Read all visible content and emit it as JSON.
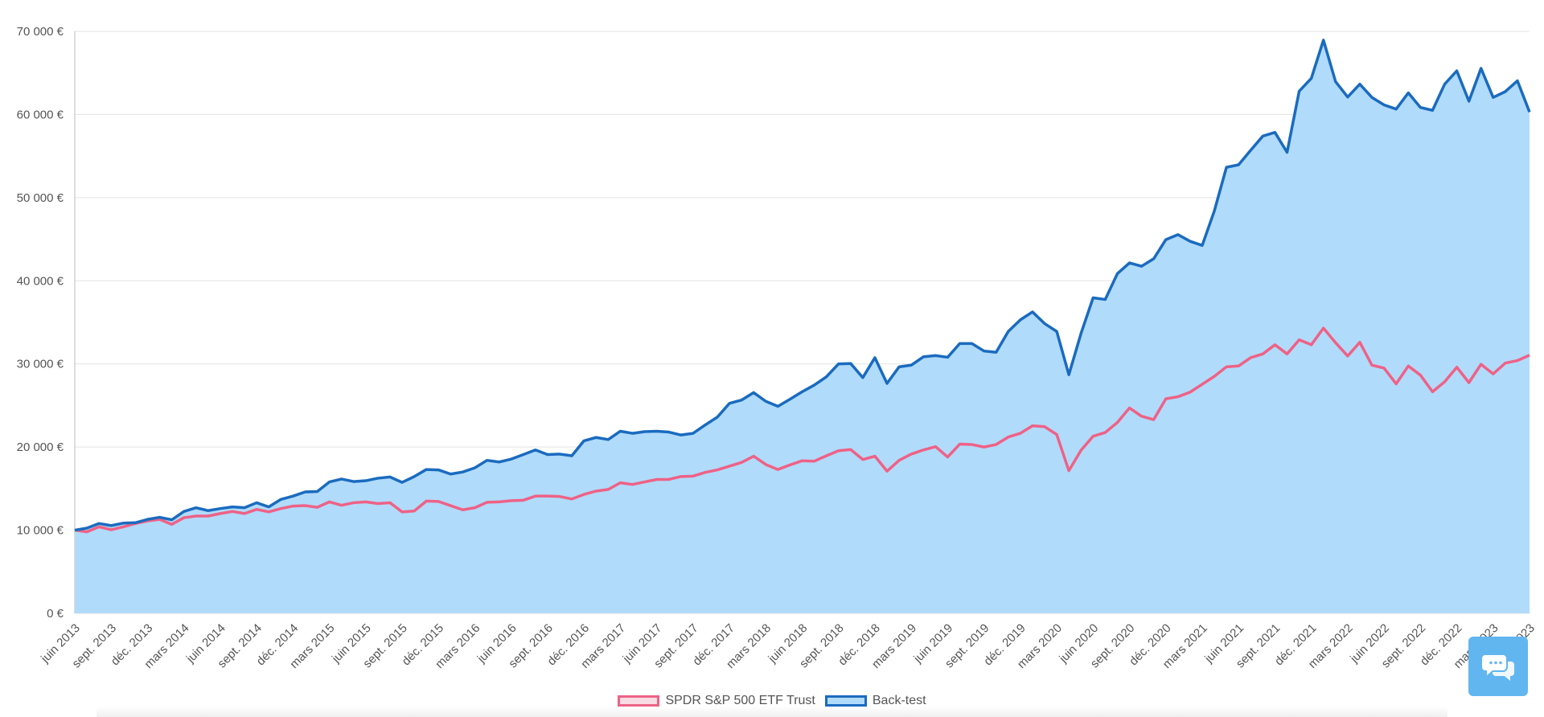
{
  "chart_data": {
    "type": "area",
    "title": "",
    "xlabel": "",
    "ylabel": "",
    "ylim": [
      0,
      70000
    ],
    "y_ticks": [
      "0 €",
      "10 000 €",
      "20 000 €",
      "30 000 €",
      "40 000 €",
      "50 000 €",
      "60 000 €",
      "70 000 €"
    ],
    "grid": true,
    "legend_position": "bottom-center",
    "start_month": "juin 2013",
    "x_labels": [
      "juin 2013",
      "sept. 2013",
      "déc. 2013",
      "mars 2014",
      "juin 2014",
      "sept. 2014",
      "déc. 2014",
      "mars 2015",
      "juin 2015",
      "sept. 2015",
      "déc. 2015",
      "mars 2016",
      "juin 2016",
      "sept. 2016",
      "déc. 2016",
      "mars 2017",
      "juin 2017",
      "sept. 2017",
      "déc. 2017",
      "mars 2018",
      "juin 2018",
      "sept. 2018",
      "déc. 2018",
      "mars 2019",
      "juin 2019",
      "sept. 2019",
      "déc. 2019",
      "mars 2020",
      "juin 2020",
      "sept. 2020",
      "déc. 2020",
      "mars 2021",
      "juin 2021",
      "sept. 2021",
      "déc. 2021",
      "mars 2022",
      "juin 2022",
      "sept. 2022",
      "déc. 2022",
      "mars 2023",
      "juin 2023"
    ],
    "series": [
      {
        "name": "SPDR S&P 500 ETF Trust",
        "color": "#ee6286",
        "fill": "#f9dbe3",
        "values": [
          10000,
          9800,
          10400,
          10050,
          10400,
          10800,
          11100,
          11300,
          10700,
          11500,
          11700,
          11700,
          12000,
          12250,
          12000,
          12500,
          12200,
          12600,
          12900,
          12950,
          12750,
          13400,
          13000,
          13300,
          13400,
          13200,
          13300,
          12200,
          12300,
          13500,
          13450,
          12950,
          12450,
          12700,
          13350,
          13400,
          13550,
          13600,
          14100,
          14100,
          14050,
          13750,
          14300,
          14700,
          14900,
          15700,
          15500,
          15800,
          16100,
          16100,
          16450,
          16500,
          16950,
          17250,
          17700,
          18150,
          18900,
          17900,
          17300,
          17850,
          18350,
          18300,
          18950,
          19550,
          19700,
          18500,
          18900,
          17100,
          18400,
          19150,
          19650,
          20050,
          18800,
          20350,
          20300,
          20000,
          20300,
          21200,
          21650,
          22550,
          22450,
          21500,
          17150,
          19600,
          21300,
          21750,
          22950,
          24700,
          23700,
          23300,
          25800,
          26050,
          26600,
          27550,
          28500,
          29650,
          29750,
          30750,
          31200,
          32300,
          31200,
          32900,
          32300,
          34300,
          32550,
          30950,
          32600,
          29850,
          29500,
          27600,
          29750,
          28650,
          26650,
          27850,
          29600,
          27750,
          29950,
          28800,
          30100,
          30400,
          31050
        ]
      },
      {
        "name": "Back-test",
        "color": "#1a6bbf",
        "fill": "#b1dbfb",
        "values": [
          10000,
          10250,
          10800,
          10550,
          10850,
          10900,
          11300,
          11550,
          11250,
          12250,
          12700,
          12350,
          12600,
          12800,
          12700,
          13300,
          12800,
          13700,
          14100,
          14600,
          14650,
          15800,
          16150,
          15850,
          15950,
          16250,
          16400,
          15750,
          16450,
          17300,
          17250,
          16750,
          17000,
          17500,
          18400,
          18200,
          18550,
          19100,
          19650,
          19100,
          19150,
          18950,
          20750,
          21150,
          20900,
          21900,
          21650,
          21850,
          21900,
          21800,
          21450,
          21650,
          22650,
          23600,
          25250,
          25650,
          26550,
          25500,
          24900,
          25750,
          26650,
          27450,
          28450,
          30000,
          30050,
          28350,
          30750,
          27650,
          29650,
          29850,
          30850,
          31000,
          30800,
          32450,
          32450,
          31550,
          31400,
          33900,
          35300,
          36250,
          34850,
          33900,
          28700,
          33650,
          37950,
          37750,
          40850,
          42150,
          41750,
          42650,
          44950,
          45550,
          44750,
          44250,
          48400,
          53650,
          53950,
          55700,
          57400,
          57850,
          55450,
          62800,
          64350,
          68950,
          63950,
          62100,
          63650,
          62050,
          61150,
          60650,
          62600,
          60850,
          60500,
          63650,
          65250,
          61600,
          65550,
          62050,
          62750,
          64050,
          60300
        ]
      }
    ]
  },
  "legend": [
    {
      "label": "SPDR S&P 500 ETF Trust",
      "swatch_fill": "#f9dbe3",
      "swatch_border": "#ee6286"
    },
    {
      "label": "Back-test",
      "swatch_fill": "#b1dbfb",
      "swatch_border": "#1a6bbf"
    }
  ],
  "chat_widget": {
    "icon": "chat-bubbles-icon",
    "color": "#62b6f0"
  }
}
